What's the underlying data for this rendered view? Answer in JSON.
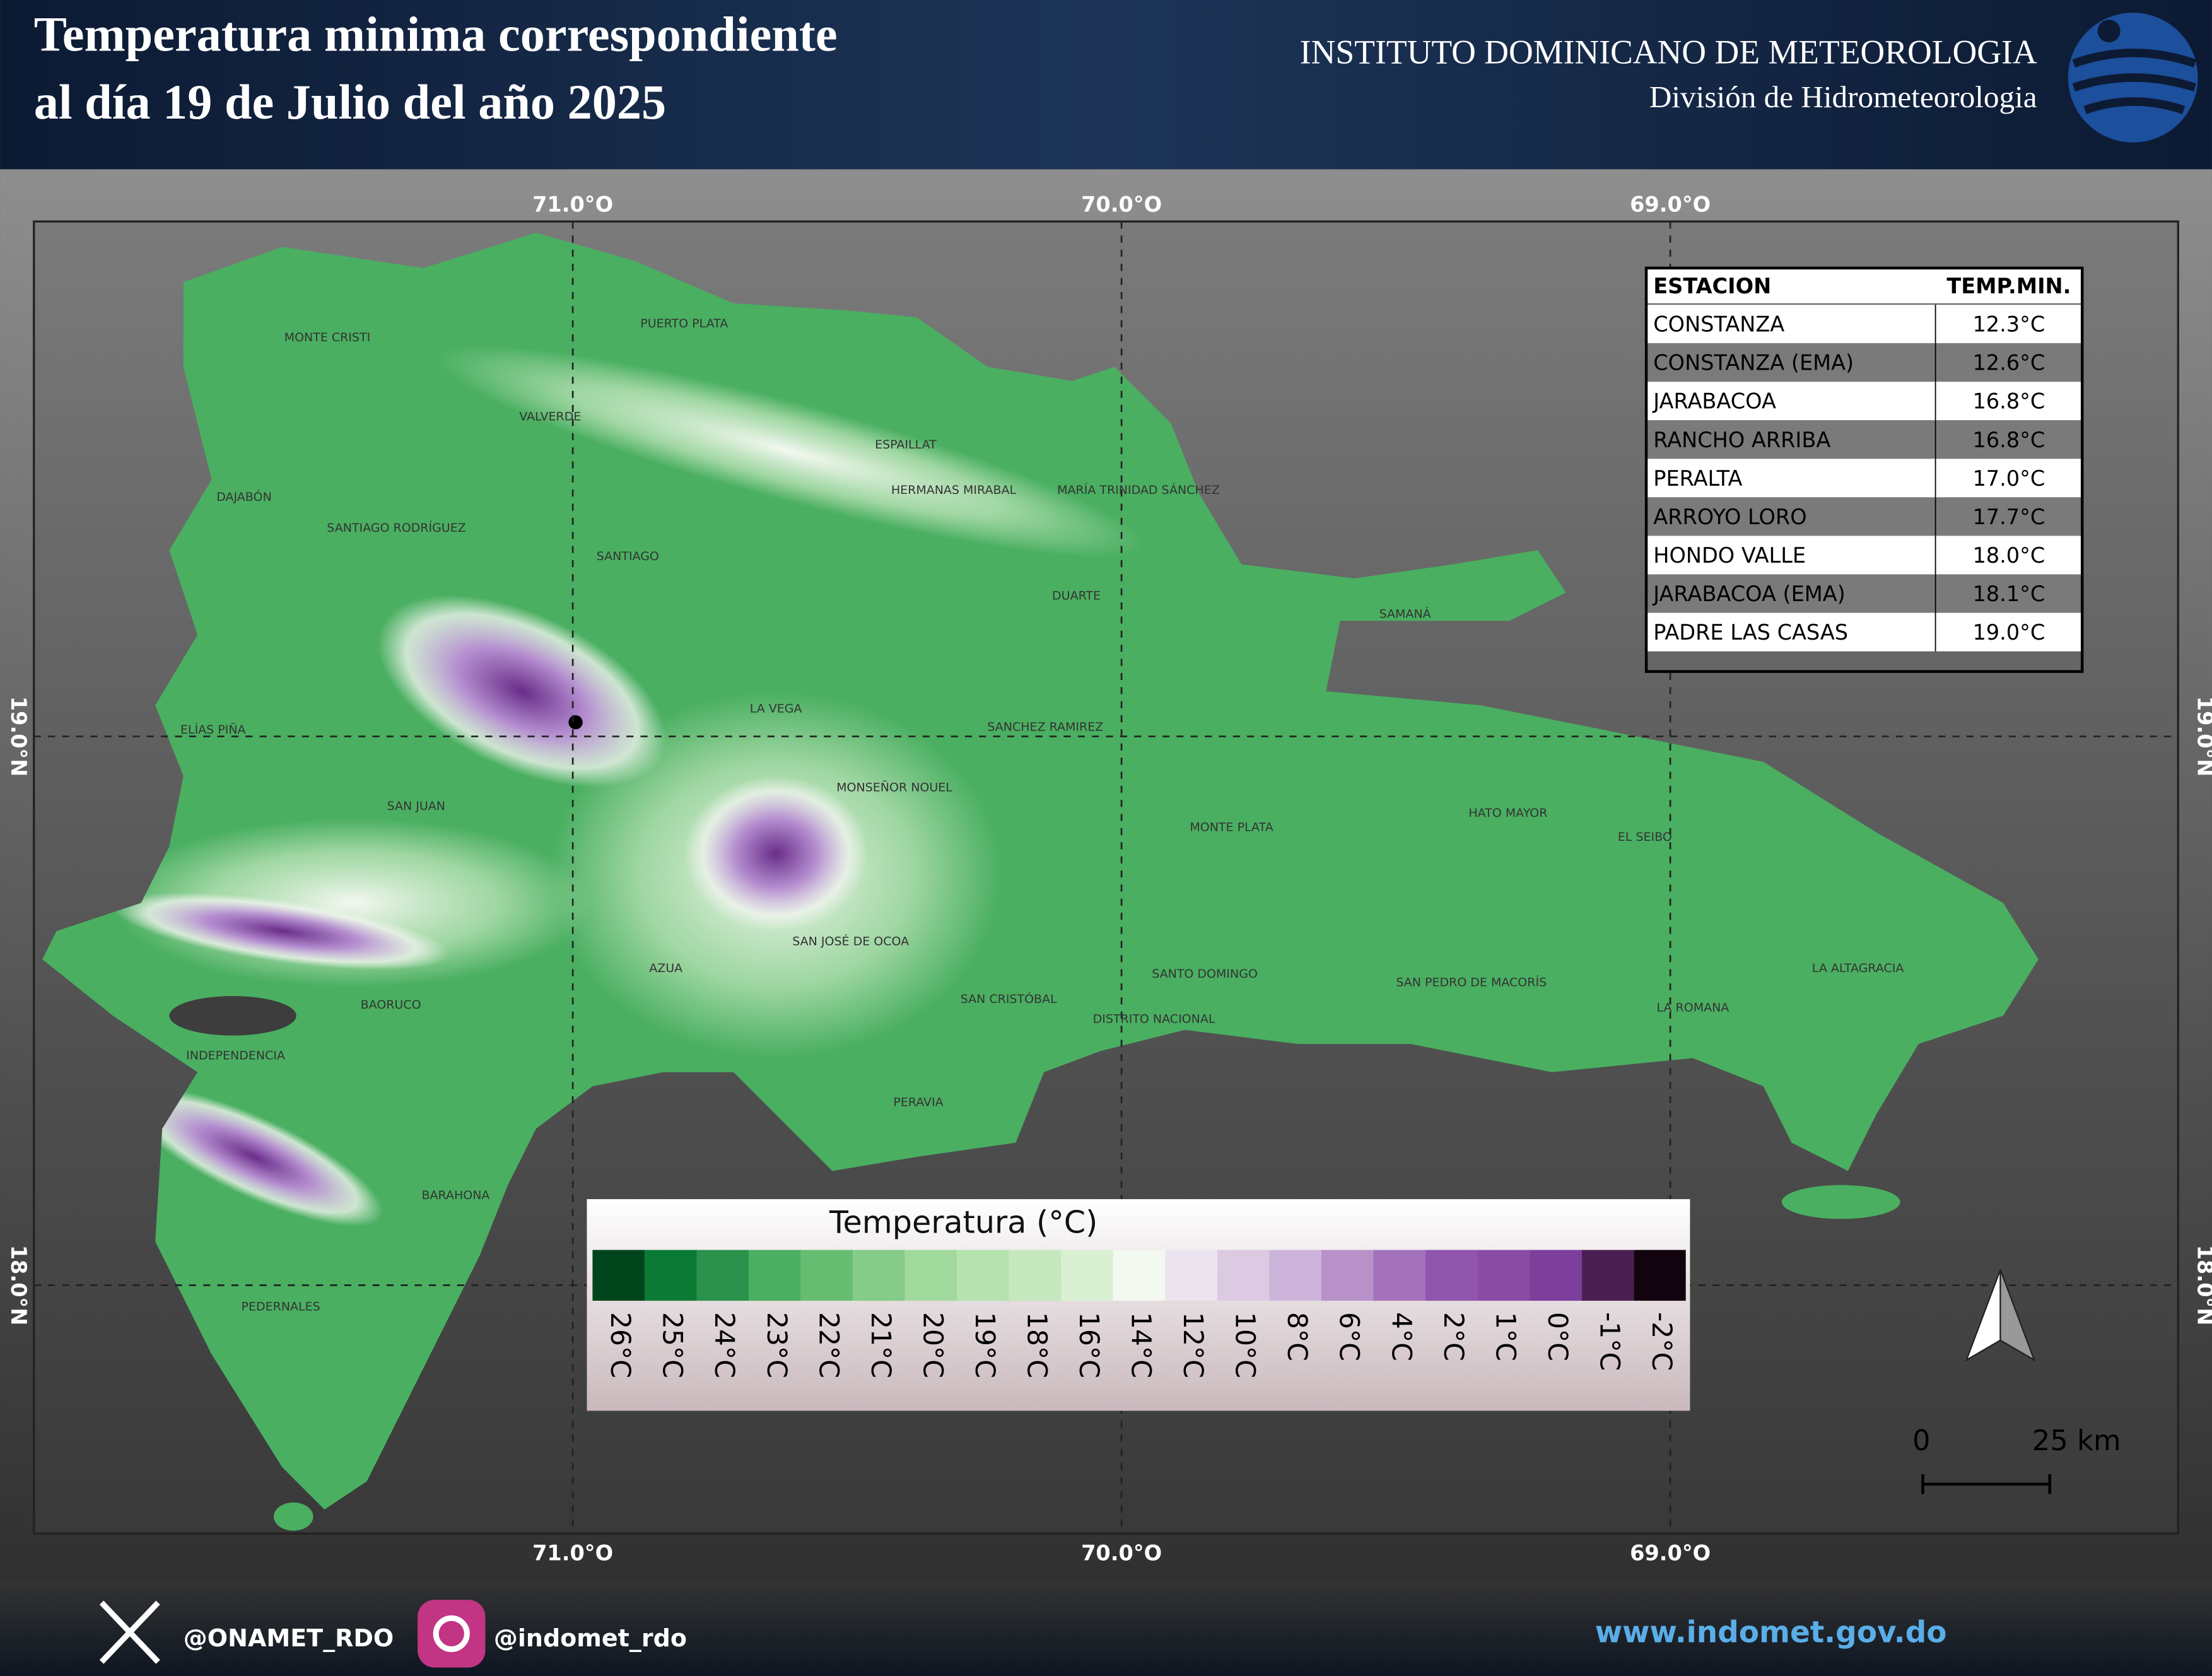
{
  "header": {
    "title_line1": "Temperatura minima correspondiente",
    "title_line2": "al día 19 de Julio del año 2025",
    "institute": "INSTITUTO DOMINICANO DE METEOROLOGIA",
    "division": "División de Hidrometeorologia"
  },
  "map": {
    "lon_labels": [
      "71.0°O",
      "70.0°O",
      "69.0°O"
    ],
    "lat_labels": [
      "19.0°N",
      "18.0°N"
    ],
    "place_labels": [
      "MONTE CRISTI",
      "PUERTO PLATA",
      "VALVERDE",
      "ESPAILLAT",
      "MARÍA TRINIDAD SÁNCHEZ",
      "HERMANAS MIRABAL",
      "DAJABÓN",
      "SANTIAGO RODRÍGUEZ",
      "SANTIAGO",
      "DUARTE",
      "SAMANÁ",
      "LA VEGA",
      "ELÍAS PIÑA",
      "SANCHEZ RAMIREZ",
      "MONSEÑOR NOUEL",
      "SAN JUAN",
      "HATO MAYOR",
      "MONTE PLATA",
      "EL SEIBO",
      "SAN JOSÉ DE OCOA",
      "AZUA",
      "LA ALTAGRACIA",
      "SANTO DOMINGO",
      "SAN PEDRO DE MACORÍS",
      "SAN CRISTÓBAL",
      "BAORUCO",
      "LA ROMANA",
      "DISTRITO NACIONAL",
      "INDEPENDENCIA",
      "PERAVIA",
      "BARAHONA",
      "PEDERNALES"
    ]
  },
  "table": {
    "header": [
      "ESTACION",
      "TEMP.MIN."
    ],
    "rows": [
      [
        "CONSTANZA",
        "12.3°C"
      ],
      [
        "CONSTANZA (EMA)",
        "12.6°C"
      ],
      [
        "JARABACOA",
        "16.8°C"
      ],
      [
        "RANCHO ARRIBA",
        "16.8°C"
      ],
      [
        "PERALTA",
        "17.0°C"
      ],
      [
        "ARROYO LORO",
        "17.7°C"
      ],
      [
        "HONDO VALLE",
        "18.0°C"
      ],
      [
        "JARABACOA (EMA)",
        "18.1°C"
      ],
      [
        "PADRE LAS CASAS",
        "19.0°C"
      ]
    ]
  },
  "legend": {
    "title": "Temperatura (°C)",
    "items": [
      {
        "label": "26°C",
        "color": "#00441b"
      },
      {
        "label": "25°C",
        "color": "#0b7a35"
      },
      {
        "label": "24°C",
        "color": "#2a924a"
      },
      {
        "label": "23°C",
        "color": "#4aaf61"
      },
      {
        "label": "22°C",
        "color": "#66bd72"
      },
      {
        "label": "21°C",
        "color": "#85cc88"
      },
      {
        "label": "20°C",
        "color": "#a0d99b"
      },
      {
        "label": "19°C",
        "color": "#b5e2ae"
      },
      {
        "label": "18°C",
        "color": "#c5e8bf"
      },
      {
        "label": "16°C",
        "color": "#d9f0d3"
      },
      {
        "label": "14°C",
        "color": "#f3f8f0"
      },
      {
        "label": "12°C",
        "color": "#ece4ef"
      },
      {
        "label": "10°C",
        "color": "#dcc9e2"
      },
      {
        "label": "8°C",
        "color": "#cdb4da"
      },
      {
        "label": "6°C",
        "color": "#b891c9"
      },
      {
        "label": "4°C",
        "color": "#a472bb"
      },
      {
        "label": "2°C",
        "color": "#9055ad"
      },
      {
        "label": "1°C",
        "color": "#8a4ba5"
      },
      {
        "label": "0°C",
        "color": "#7c3f9c"
      },
      {
        "label": "-1°C",
        "color": "#4a1f52"
      },
      {
        "label": "-2°C",
        "color": "#12040f"
      }
    ]
  },
  "scale": {
    "labels": [
      "0",
      "25 km"
    ]
  },
  "footer": {
    "twitter": "@ONAMET_RDO",
    "instagram": "@indomet_rdo",
    "website": "www.indomet.gov.do"
  }
}
